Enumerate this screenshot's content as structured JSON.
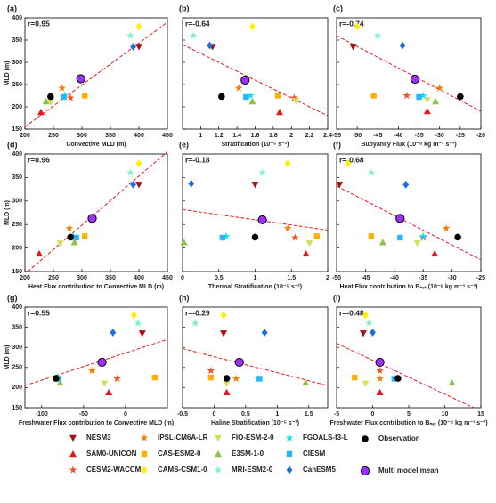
{
  "chart_data": [
    {
      "type": "scatter",
      "label": "(a)",
      "r": "r=0.95",
      "xlabel": "Convective MLD (m)",
      "ylabel": "MLD (m)",
      "xlim": [
        200,
        450
      ],
      "xticks": [
        200,
        250,
        300,
        350,
        400,
        450
      ],
      "ylim": [
        150,
        400
      ],
      "yticks": [
        150,
        200,
        250,
        300,
        350,
        400
      ],
      "x": [
        400,
        228,
        280,
        265,
        305,
        400,
        245,
        237,
        385,
        270,
        268,
        390,
        245,
        298
      ],
      "y": [
        335,
        188,
        220,
        242,
        225,
        380,
        210,
        212,
        360,
        225,
        222,
        335,
        223,
        263
      ],
      "fit_line": {
        "x": [
          200,
          450
        ],
        "y": [
          155,
          390
        ]
      }
    },
    {
      "type": "scatter",
      "label": "(b)",
      "r": "r=-0.64",
      "xlabel": "Stratification (10⁻⁵ s⁻²)",
      "xlim": [
        0.8,
        2.4
      ],
      "xticks": [
        1,
        1.2,
        1.4,
        1.6,
        1.8,
        2,
        2.2,
        2.4
      ],
      "ylim": [
        150,
        400
      ],
      "yticks": [
        150,
        200,
        250,
        300,
        350,
        400
      ],
      "x": [
        1.13,
        1.87,
        2.03,
        1.42,
        1.85,
        1.57,
        2.05,
        1.57,
        0.92,
        1.55,
        1.5,
        1.1,
        1.23,
        1.49
      ],
      "y": [
        335,
        188,
        220,
        242,
        225,
        380,
        213,
        212,
        360,
        225,
        222,
        338,
        223,
        260
      ],
      "fit_line": {
        "x": [
          0.8,
          2.4
        ],
        "y": [
          340,
          180
        ]
      }
    },
    {
      "type": "scatter",
      "label": "(c)",
      "r": "r=-0.74",
      "xlabel": "Buoyancy Flux (10⁻⁸ kg m⁻¹ s⁻³)",
      "xlim": [
        -55,
        -20
      ],
      "xticks": [
        -55,
        -50,
        -45,
        -40,
        -35,
        -30,
        -25,
        -20
      ],
      "ylim": [
        150,
        400
      ],
      "yticks": [
        150,
        200,
        250,
        300,
        350,
        400
      ],
      "x": [
        -51,
        -33,
        -38,
        -30,
        -46,
        -50,
        -33,
        -31,
        -45,
        -34,
        -35,
        -39,
        -25,
        -36
      ],
      "y": [
        335,
        190,
        225,
        242,
        225,
        380,
        215,
        212,
        360,
        225,
        222,
        338,
        223,
        262
      ],
      "fit_line": {
        "x": [
          -55,
          -20
        ],
        "y": [
          360,
          190
        ]
      }
    },
    {
      "type": "scatter",
      "label": "(d)",
      "r": "r=0.96",
      "xlabel": "Heat Flux contribution to Convective MLD (m)",
      "ylabel": "MLD (m)",
      "xlim": [
        200,
        450
      ],
      "xticks": [
        200,
        250,
        300,
        350,
        400,
        450
      ],
      "ylim": [
        150,
        400
      ],
      "yticks": [
        150,
        200,
        250,
        300,
        350,
        400
      ],
      "x": [
        400,
        225,
        280,
        278,
        305,
        400,
        262,
        287,
        385,
        285,
        290,
        390,
        280,
        318
      ],
      "y": [
        335,
        188,
        222,
        242,
        225,
        380,
        210,
        212,
        360,
        225,
        222,
        335,
        223,
        263
      ],
      "fit_line": {
        "x": [
          205,
          450
        ],
        "y": [
          150,
          405
        ]
      }
    },
    {
      "type": "scatter",
      "label": "(e)",
      "r": "r=-0.18",
      "xlabel": "Thermal Stratification (10⁻⁵ s⁻²)",
      "xlim": [
        0,
        2
      ],
      "xticks": [
        0,
        0.5,
        1,
        1.5,
        2
      ],
      "ylim": [
        150,
        400
      ],
      "yticks": [
        150,
        200,
        250,
        300,
        350,
        400
      ],
      "x": [
        1.0,
        1.7,
        1.55,
        1.45,
        1.85,
        1.45,
        1.75,
        0.02,
        1.1,
        0.6,
        0.55,
        0.12,
        1.0,
        1.1
      ],
      "y": [
        335,
        188,
        222,
        242,
        225,
        380,
        210,
        212,
        360,
        225,
        222,
        337,
        223,
        260
      ],
      "fit_line": {
        "x": [
          0,
          2
        ],
        "y": [
          282,
          238
        ]
      }
    },
    {
      "type": "scatter",
      "label": "(f)",
      "r": "r=-0.68",
      "xlabel": "Heat Flux contribution to Bₙₑₜ (10⁻⁸ kg m⁻¹ s⁻³)",
      "xlim": [
        -50,
        -25
      ],
      "xticks": [
        -50,
        -45,
        -40,
        -35,
        -30,
        -25
      ],
      "ylim": [
        150,
        400
      ],
      "yticks": [
        150,
        200,
        250,
        300,
        350,
        400
      ],
      "x": [
        -49.5,
        -33,
        -35,
        -31,
        -44,
        -48,
        -36,
        -42,
        -44,
        -35,
        -39,
        -38,
        -29,
        -39
      ],
      "y": [
        335,
        188,
        222,
        242,
        225,
        380,
        210,
        212,
        360,
        225,
        222,
        335,
        223,
        263
      ],
      "fit_line": {
        "x": [
          -50,
          -25
        ],
        "y": [
          332,
          175
        ]
      }
    },
    {
      "type": "scatter",
      "label": "(g)",
      "r": "r=0.55",
      "xlabel": "Freshwater Flux contribution to Convective MLD (m)",
      "ylabel": "MLD (m)",
      "xlim": [
        -120,
        50
      ],
      "xticks": [
        -100,
        -50,
        0
      ],
      "ylim": [
        150,
        400
      ],
      "yticks": [
        150,
        200,
        250,
        300,
        350,
        400
      ],
      "x": [
        20,
        -20,
        -10,
        -40,
        35,
        10,
        -25,
        -78,
        15,
        -80,
        -80,
        -15,
        -83,
        -28
      ],
      "y": [
        335,
        188,
        222,
        242,
        225,
        380,
        210,
        212,
        360,
        225,
        222,
        337,
        223,
        263
      ],
      "fit_line": {
        "x": [
          -120,
          50
        ],
        "y": [
          205,
          320
        ]
      }
    },
    {
      "type": "scatter",
      "label": "(h)",
      "r": "r=-0.29",
      "xlabel": "Haline Stratification (10⁻⁵ s⁻²)",
      "xlim": [
        -0.5,
        1.8
      ],
      "xticks": [
        -0.5,
        0,
        0.5,
        1,
        1.5
      ],
      "ylim": [
        150,
        400
      ],
      "yticks": [
        150,
        200,
        250,
        300,
        350,
        400
      ],
      "x": [
        0.15,
        0.2,
        -0.05,
        0.35,
        -0.05,
        0.15,
        0.2,
        1.45,
        -0.3,
        0.7,
        0.72,
        0.8,
        0.2,
        0.4
      ],
      "y": [
        335,
        188,
        242,
        222,
        225,
        380,
        210,
        212,
        360,
        222,
        222,
        337,
        223,
        263
      ],
      "fit_line": {
        "x": [
          -0.5,
          1.8
        ],
        "y": [
          297,
          205
        ]
      }
    },
    {
      "type": "scatter",
      "label": "(i)",
      "r": "r=-0.48",
      "xlabel": "Freshwater Flux contribution to Bₙₑₜ (10⁻⁸ kg m⁻¹ s⁻³)",
      "xlim": [
        -5,
        15
      ],
      "xticks": [
        -5,
        0,
        5,
        10,
        15
      ],
      "ylim": [
        150,
        400
      ],
      "yticks": [
        150,
        200,
        250,
        300,
        350,
        400
      ],
      "x": [
        -1.3,
        1,
        1,
        1,
        -2.5,
        -1,
        -1,
        11,
        -0.5,
        3,
        3,
        0,
        3.5,
        1
      ],
      "y": [
        335,
        188,
        242,
        222,
        225,
        380,
        210,
        212,
        360,
        225,
        222,
        337,
        223,
        263
      ],
      "fit_line": {
        "x": [
          -5,
          14
        ],
        "y": [
          310,
          150
        ]
      }
    }
  ],
  "legend": [
    {
      "name": "NESM3",
      "color": "#a50f15",
      "marker": "tri-down"
    },
    {
      "name": "SAM0-UNICON",
      "color": "#e31a1c",
      "marker": "tri-up"
    },
    {
      "name": "CESM2-WACCM",
      "color": "#f4511e",
      "marker": "star"
    },
    {
      "name": "IPSL-CM6A-LR",
      "color": "#f57c00",
      "marker": "star"
    },
    {
      "name": "CAS-ESM2-0",
      "color": "#ffb000",
      "marker": "square"
    },
    {
      "name": "CAMS-CSM1-0",
      "color": "#ffee00",
      "marker": "diamond"
    },
    {
      "name": "FIO-ESM-2-0",
      "color": "#d4e157",
      "marker": "tri-down"
    },
    {
      "name": "E3SM-1-0",
      "color": "#8bc34a",
      "marker": "tri-up"
    },
    {
      "name": "MRI-ESM2-0",
      "color": "#7ff0c8",
      "marker": "star"
    },
    {
      "name": "FGOALS-f3-L",
      "color": "#00e5ff",
      "marker": "star"
    },
    {
      "name": "CIESM",
      "color": "#29b6f6",
      "marker": "square"
    },
    {
      "name": "CanESM5",
      "color": "#1e6fd9",
      "marker": "diamond"
    },
    {
      "name": "Observation",
      "color": "#000000",
      "marker": "circle"
    },
    {
      "name": "Multi model mean",
      "color": "#9b30ff",
      "marker": "circle-edge"
    }
  ]
}
